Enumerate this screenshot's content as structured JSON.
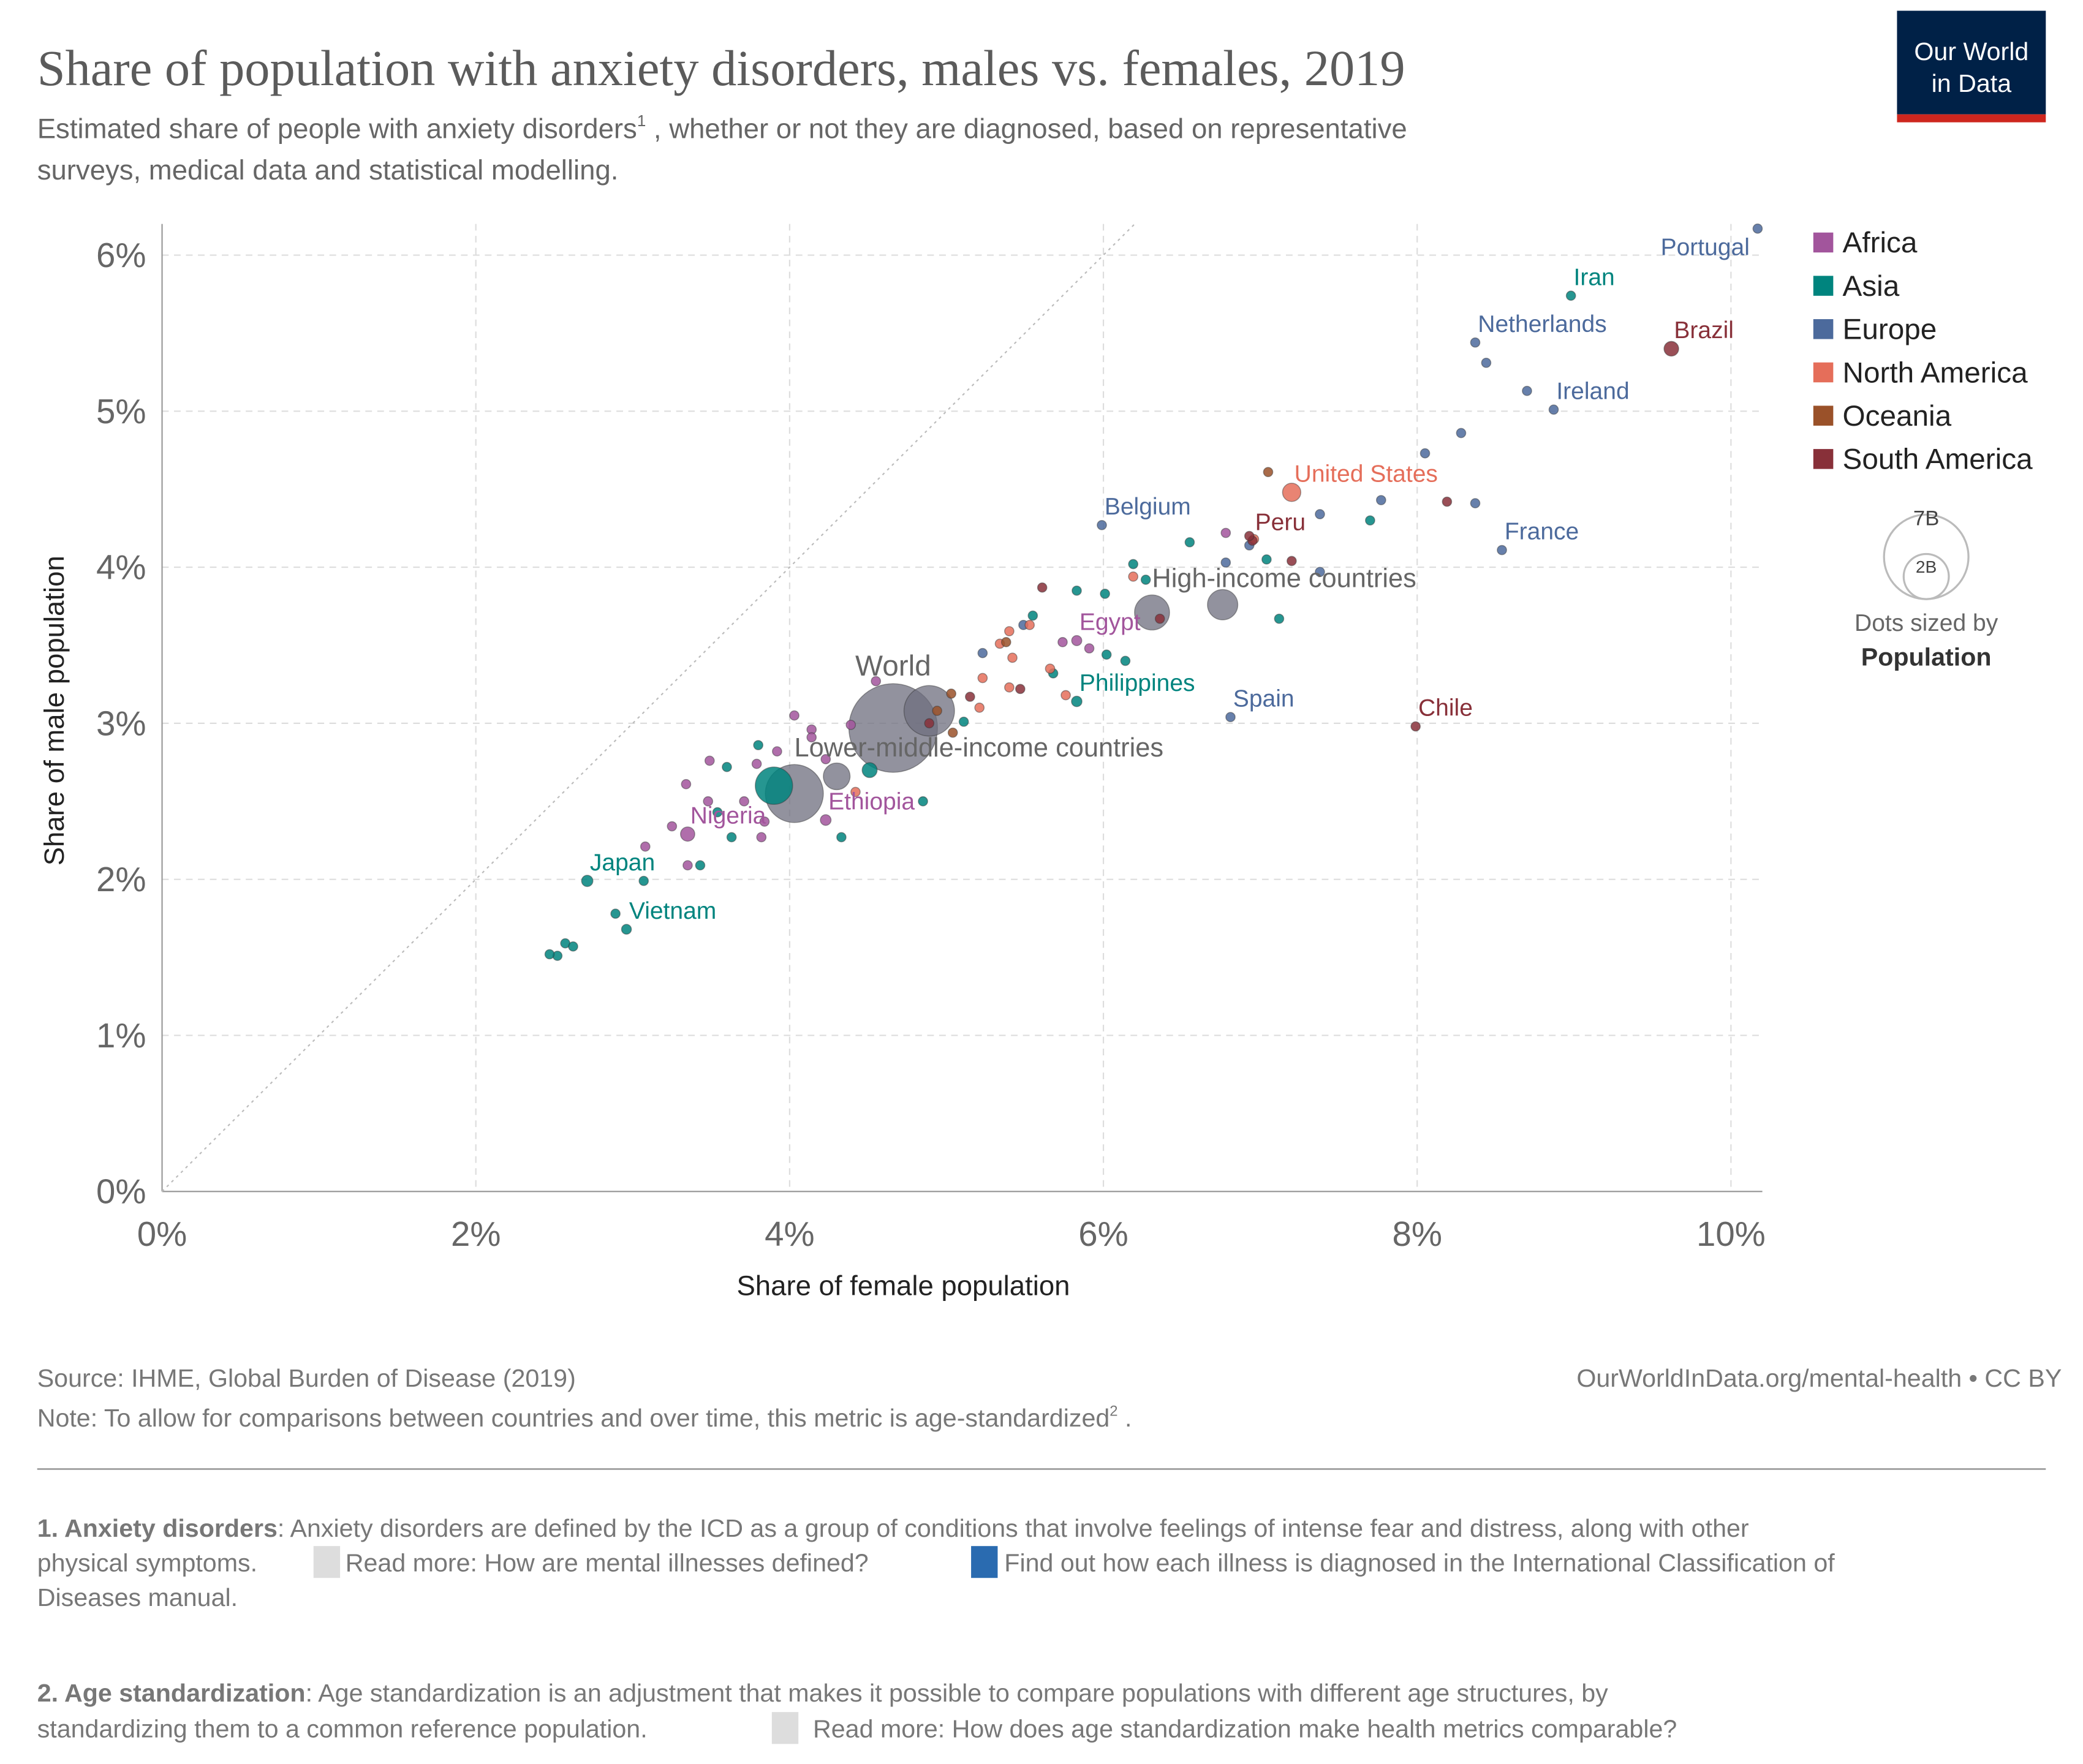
{
  "chart_data": {
    "type": "scatter",
    "title": "Share of population with anxiety disorders, males vs. females, 2019",
    "subtitle": {
      "line1": "Estimated share of people with anxiety disorders",
      "sup": "1",
      "line1_end": " , whether or not they are diagnosed, based on representative",
      "line2": "surveys, medical data and statistical modelling."
    },
    "logo": [
      "Our World",
      "in Data"
    ],
    "x_label": "Share of female population",
    "y_label": "Share of male population",
    "xlim": [
      0,
      10.2
    ],
    "ylim": [
      0,
      6.2
    ],
    "xticks": [
      {
        "value": 0,
        "label": "0%"
      },
      {
        "value": 2,
        "label": "2%"
      },
      {
        "value": 4,
        "label": "4%"
      },
      {
        "value": 6,
        "label": "6%"
      },
      {
        "value": 8,
        "label": "8%"
      },
      {
        "value": 10,
        "label": "10%"
      }
    ],
    "yticks": [
      {
        "value": 0,
        "label": "0%"
      },
      {
        "value": 1,
        "label": "1%"
      },
      {
        "value": 2,
        "label": "2%"
      },
      {
        "value": 3,
        "label": "3%"
      },
      {
        "value": 4,
        "label": "4%"
      },
      {
        "value": 5,
        "label": "5%"
      },
      {
        "value": 6,
        "label": "6%"
      }
    ],
    "grid": true,
    "legend": "right",
    "series": [
      {
        "name": "Africa",
        "color": "#a2559c",
        "x": [
          5.83,
          4.23,
          3.35,
          6.78,
          5.74,
          4.55,
          4.03,
          4.14,
          3.92,
          3.49,
          3.34,
          3.48,
          3.71,
          3.84,
          3.25,
          3.08,
          3.35,
          3.82,
          4.23,
          4.39,
          4.14,
          3.79,
          5.91
        ],
        "y": [
          3.53,
          2.38,
          2.29,
          4.22,
          3.52,
          3.27,
          3.05,
          2.96,
          2.82,
          2.76,
          2.61,
          2.5,
          2.5,
          2.37,
          2.34,
          2.21,
          2.09,
          2.27,
          2.77,
          2.99,
          2.91,
          2.74,
          3.48
        ],
        "sizes": [
          100000000,
          112000000,
          200000000,
          10000000,
          12000000,
          8000000,
          15000000,
          20000000,
          25000000,
          18000000,
          12000000,
          30000000,
          22000000,
          10000000,
          14000000,
          8000000,
          16000000,
          11000000,
          28000000,
          9000000,
          17000000,
          13000000,
          10000000
        ],
        "labels": [
          "Egypt",
          "Ethiopia",
          "Nigeria",
          null,
          null,
          null,
          null,
          null,
          null,
          null,
          null,
          null,
          null,
          null,
          null,
          null,
          null,
          null,
          null,
          null,
          null,
          null,
          null
        ]
      },
      {
        "name": "Asia",
        "color": "#00847e",
        "x": [
          8.98,
          5.83,
          2.71,
          2.96,
          3.9,
          7.7,
          6.55,
          6.19,
          6.27,
          7.04,
          7.12,
          5.83,
          6.01,
          5.55,
          6.02,
          6.14,
          5.68,
          5.11,
          3.8,
          3.6,
          3.63,
          4.33,
          3.43,
          3.07,
          2.89,
          2.47,
          2.52,
          2.57,
          2.62,
          4.85,
          4.51,
          3.54
        ],
        "y": [
          5.74,
          3.14,
          1.99,
          1.68,
          2.6,
          4.3,
          4.16,
          4.02,
          3.92,
          4.05,
          3.67,
          3.85,
          3.83,
          3.69,
          3.44,
          3.4,
          3.32,
          3.01,
          2.86,
          2.72,
          2.27,
          2.27,
          2.09,
          1.99,
          1.78,
          1.52,
          1.51,
          1.59,
          1.57,
          2.5,
          2.7,
          2.43
        ],
        "sizes": [
          84000000,
          108000000,
          126000000,
          96000000,
          1370000000,
          10000000,
          9000000,
          30000000,
          8000000,
          12000000,
          10000000,
          15000000,
          20000000,
          8000000,
          34000000,
          11000000,
          9000000,
          40000000,
          20000000,
          35000000,
          12000000,
          10000000,
          30000000,
          70000000,
          54000000,
          8000000,
          12000000,
          16000000,
          10000000,
          10000000,
          220000000,
          30000000
        ],
        "labels": [
          "Iran",
          "Philippines",
          "Japan",
          "Vietnam",
          null,
          null,
          null,
          null,
          null,
          null,
          null,
          null,
          null,
          null,
          null,
          null,
          null,
          null,
          null,
          null,
          null,
          null,
          null,
          null,
          null,
          null,
          null,
          null,
          null,
          null,
          null,
          null
        ]
      },
      {
        "name": "Europe",
        "color": "#4c6a9c",
        "x": [
          10.17,
          8.37,
          8.87,
          5.99,
          8.54,
          6.81,
          8.44,
          8.7,
          8.28,
          8.05,
          7.77,
          8.37,
          7.38,
          6.93,
          6.78,
          7.38,
          5.49,
          5.23
        ],
        "y": [
          6.17,
          5.44,
          5.01,
          4.27,
          4.11,
          3.04,
          5.31,
          5.13,
          4.86,
          4.73,
          4.43,
          4.41,
          4.34,
          4.14,
          4.03,
          3.97,
          3.63,
          3.45
        ],
        "sizes": [
          10300000,
          17000000,
          5000000,
          11500000,
          67000000,
          47000000,
          9000000,
          10000000,
          8000000,
          6000000,
          10000000,
          10000000,
          9000000,
          60000000,
          5000000,
          8000000,
          6000000,
          4000000
        ],
        "labels": [
          "Portugal",
          "Netherlands",
          "Ireland",
          "Belgium",
          "France",
          "Spain",
          null,
          null,
          null,
          null,
          null,
          null,
          null,
          null,
          null,
          null,
          null,
          null
        ]
      },
      {
        "name": "North America",
        "color": "#e56e5a",
        "x": [
          7.2,
          6.19,
          5.4,
          5.34,
          5.42,
          5.53,
          5.66,
          5.23,
          5.4,
          5.76,
          5.21,
          4.42,
          6.96
        ],
        "y": [
          4.48,
          3.94,
          3.59,
          3.51,
          3.42,
          3.63,
          3.35,
          3.29,
          3.23,
          3.18,
          3.1,
          2.56,
          4.18
        ],
        "sizes": [
          329000000,
          5000000,
          11000000,
          6000000,
          9000000,
          4000000,
          5000000,
          3000000,
          10000000,
          17000000,
          4000000,
          3000000,
          5000000
        ],
        "labels": [
          "United States",
          null,
          null,
          null,
          null,
          null,
          null,
          null,
          null,
          null,
          null,
          null,
          null
        ]
      },
      {
        "name": "Oceania",
        "color": "#9a5129",
        "x": [
          7.05,
          5.38,
          5.03,
          5.04,
          4.94
        ],
        "y": [
          4.61,
          3.52,
          3.19,
          2.94,
          3.08
        ],
        "sizes": [
          25000000,
          5000000,
          9000000,
          1000000,
          1000000
        ],
        "labels": [
          null,
          null,
          null,
          null,
          null
        ]
      },
      {
        "name": "South America",
        "color": "#883039",
        "x": [
          9.62,
          6.95,
          7.99,
          8.19,
          7.2,
          6.93,
          5.61,
          6.36,
          5.15,
          4.89,
          5.47
        ],
        "y": [
          5.4,
          4.17,
          2.98,
          4.42,
          4.04,
          4.2,
          3.87,
          3.67,
          3.17,
          3.0,
          3.22
        ],
        "sizes": [
          211000000,
          32000000,
          19000000,
          3500000,
          28000000,
          11000000,
          7000000,
          50000000,
          17000000,
          3000000,
          7000000
        ],
        "labels": [
          "Brazil",
          "Peru",
          "Chile",
          null,
          null,
          null,
          null,
          null,
          null,
          null,
          null
        ]
      }
    ],
    "aggregates": {
      "color": "#6e6e7e",
      "x": [
        4.66,
        6.31,
        4.03,
        4.3,
        6.76,
        4.89
      ],
      "y": [
        2.97,
        3.71,
        2.55,
        2.66,
        3.76,
        3.08
      ],
      "sizes": [
        7700000000,
        1200000000,
        3300000000,
        700000000,
        900000000,
        2500000000
      ],
      "labels": [
        "World",
        "High-income countries",
        "Lower-middle-income countries",
        null,
        null,
        null
      ]
    },
    "size_legend": {
      "sizes": [
        {
          "value": 7000000000,
          "label": "7B"
        },
        {
          "value": 2000000000,
          "label": "2B"
        }
      ],
      "title": "Dots sized by",
      "variable": "Population"
    },
    "source": "Source: IHME, Global Burden of Disease (2019)",
    "url": "OurWorldInData.org/mental-health • CC BY",
    "note": {
      "text": "Note: To allow for comparisons between countries and over time, this metric is  age-standardized",
      "sup": "2",
      "end": " ."
    },
    "footnotes": [
      {
        "head": "1. Anxiety disorders",
        "lines": [
          ": Anxiety disorders are defined by the ICD as a group of conditions that involve feelings of intense fear and distress, along with other",
          "physical symptoms.",
          "Read more: How are mental illnesses defined?",
          "Find out how each illness is diagnosed in the International Classification of",
          "Diseases manual."
        ]
      },
      {
        "head": "2. Age standardization",
        "lines": [
          ": Age standardization is an adjustment that makes it possible to compare populations with different age structures, by",
          "standardizing them to a common reference population.",
          "Read more: How does age standardization make health metrics comparable?"
        ]
      }
    ]
  }
}
